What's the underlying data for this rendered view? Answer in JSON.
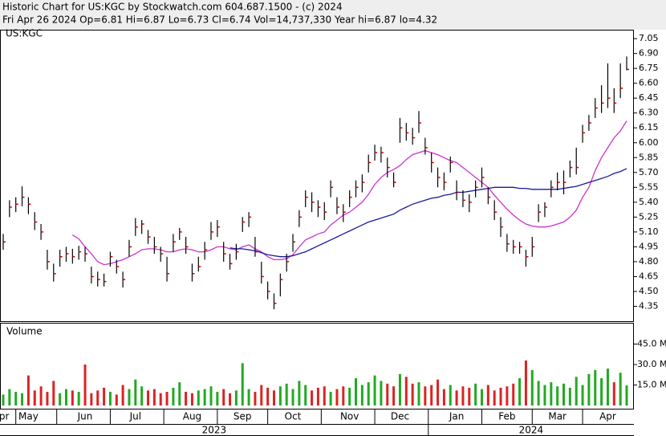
{
  "chart_data": {
    "type": "ohlc",
    "title": "Historic Chart for US:KGC by Stockwatch.com 604.687.1500 - (c) 2024",
    "subtitle": "Fri Apr 26 2024  Op=6.81  Hi=6.87  Lo=6.73  Cl=6.74  Vol=14,737,330  Year hi=6.87  lo=4.32",
    "symbol": "US:KGC",
    "categories": [
      "Apr",
      null,
      null,
      null,
      "May",
      null,
      null,
      null,
      null,
      null,
      null,
      null,
      null,
      "Jun",
      null,
      null,
      null,
      null,
      null,
      null,
      null,
      "Jul",
      null,
      null,
      null,
      null,
      null,
      null,
      null,
      null,
      "Aug",
      null,
      null,
      null,
      null,
      null,
      null,
      null,
      "Sep",
      null,
      null,
      null,
      null,
      null,
      null,
      null,
      "Oct",
      null,
      null,
      null,
      null,
      null,
      null,
      null,
      null,
      "Nov",
      null,
      null,
      null,
      null,
      null,
      null,
      null,
      "Dec",
      null,
      null,
      null,
      null,
      null,
      null,
      null,
      null,
      "Jan",
      null,
      null,
      null,
      null,
      null,
      null,
      null,
      "Feb",
      null,
      null,
      null,
      null,
      null,
      null,
      null,
      "Mar",
      null,
      null,
      null,
      null,
      null,
      null,
      null,
      "Apr",
      null,
      null,
      null
    ],
    "year_labels": [
      "2023",
      "2024"
    ],
    "highs": [
      5.08,
      5.42,
      5.45,
      5.56,
      5.45,
      5.3,
      5.18,
      4.92,
      4.78,
      4.92,
      4.95,
      4.93,
      4.96,
      4.95,
      4.75,
      4.7,
      4.68,
      4.9,
      4.82,
      4.7,
      5.02,
      5.24,
      5.22,
      5.12,
      5.05,
      4.95,
      4.85,
      5.08,
      5.14,
      5.05,
      4.78,
      4.85,
      5.0,
      5.2,
      5.22,
      5.0,
      4.88,
      4.98,
      5.25,
      5.3,
      5.05,
      4.8,
      4.6,
      4.48,
      4.68,
      4.88,
      5.08,
      5.32,
      5.52,
      5.5,
      5.42,
      5.4,
      5.62,
      5.45,
      5.38,
      5.52,
      5.62,
      5.68,
      5.88,
      5.98,
      5.96,
      5.85,
      5.7,
      6.25,
      6.2,
      6.15,
      6.32,
      6.05,
      5.9,
      5.75,
      5.7,
      5.86,
      5.62,
      5.52,
      5.48,
      5.62,
      5.75,
      5.55,
      5.42,
      5.25,
      5.08,
      5.02,
      5.0,
      4.92,
      5.05,
      5.38,
      5.4,
      5.62,
      5.7,
      5.72,
      5.82,
      5.95,
      6.18,
      6.28,
      6.45,
      6.58,
      6.8,
      6.55,
      6.8,
      6.87
    ],
    "lows": [
      4.92,
      5.25,
      5.3,
      5.36,
      5.28,
      5.12,
      5.02,
      4.72,
      4.6,
      4.75,
      4.8,
      4.78,
      4.82,
      4.8,
      4.58,
      4.55,
      4.55,
      4.75,
      4.68,
      4.54,
      4.85,
      5.06,
      5.08,
      4.98,
      4.88,
      4.8,
      4.6,
      4.9,
      5.02,
      4.88,
      4.6,
      4.7,
      4.82,
      5.02,
      5.05,
      4.8,
      4.72,
      4.82,
      5.1,
      5.15,
      4.85,
      4.58,
      4.42,
      4.32,
      4.45,
      4.7,
      4.9,
      5.15,
      5.35,
      5.3,
      5.25,
      5.22,
      5.45,
      5.28,
      5.2,
      5.35,
      5.45,
      5.5,
      5.7,
      5.82,
      5.8,
      5.65,
      5.55,
      6.0,
      6.02,
      5.98,
      6.1,
      5.88,
      5.7,
      5.55,
      5.52,
      5.7,
      5.42,
      5.35,
      5.3,
      5.45,
      5.55,
      5.38,
      5.22,
      5.05,
      4.9,
      4.88,
      4.88,
      4.75,
      4.85,
      5.2,
      5.25,
      5.45,
      5.52,
      5.48,
      5.65,
      5.68,
      6.0,
      6.12,
      6.25,
      6.3,
      6.35,
      6.3,
      6.45,
      6.73
    ],
    "closes": [
      5.0,
      5.35,
      5.38,
      5.45,
      5.38,
      5.2,
      5.1,
      4.8,
      4.68,
      4.85,
      4.88,
      4.85,
      4.9,
      4.88,
      4.65,
      4.62,
      4.6,
      4.85,
      4.75,
      4.62,
      4.95,
      5.15,
      5.18,
      5.05,
      4.95,
      4.88,
      4.68,
      5.0,
      5.1,
      4.95,
      4.68,
      4.75,
      4.92,
      5.1,
      5.15,
      4.88,
      4.78,
      4.9,
      5.2,
      5.25,
      4.9,
      4.65,
      4.5,
      4.38,
      4.62,
      4.8,
      5.0,
      5.25,
      5.45,
      5.4,
      5.35,
      5.3,
      5.55,
      5.35,
      5.3,
      5.45,
      5.55,
      5.6,
      5.8,
      5.9,
      5.9,
      5.75,
      5.6,
      6.15,
      6.1,
      6.05,
      6.2,
      5.95,
      5.8,
      5.65,
      5.6,
      5.8,
      5.5,
      5.42,
      5.4,
      5.55,
      5.65,
      5.45,
      5.3,
      5.15,
      4.98,
      4.95,
      4.95,
      4.85,
      4.95,
      5.3,
      5.35,
      5.55,
      5.6,
      5.6,
      5.75,
      5.75,
      6.1,
      6.2,
      6.35,
      6.4,
      6.45,
      6.4,
      6.55,
      6.74
    ],
    "bar_color": "#000000",
    "close_color": "#cc0000",
    "overlays": [
      {
        "color": "#cc33cc",
        "values": [
          null,
          null,
          null,
          null,
          null,
          null,
          null,
          null,
          null,
          null,
          null,
          5.07,
          5.03,
          4.95,
          4.88,
          4.8,
          4.77,
          4.78,
          4.8,
          4.82,
          4.85,
          4.88,
          4.92,
          4.93,
          4.93,
          4.92,
          4.9,
          4.9,
          4.92,
          4.93,
          4.92,
          4.9,
          4.9,
          4.92,
          4.95,
          4.95,
          4.93,
          4.92,
          4.95,
          4.97,
          4.93,
          4.9,
          4.85,
          4.82,
          4.82,
          4.83,
          4.87,
          4.95,
          5.02,
          5.05,
          5.08,
          5.1,
          5.17,
          5.22,
          5.27,
          5.3,
          5.35,
          5.4,
          5.48,
          5.58,
          5.65,
          5.7,
          5.73,
          5.77,
          5.83,
          5.88,
          5.9,
          5.92,
          5.9,
          5.88,
          5.85,
          5.82,
          5.8,
          5.75,
          5.7,
          5.65,
          5.6,
          5.55,
          5.47,
          5.4,
          5.33,
          5.27,
          5.22,
          5.18,
          5.16,
          5.15,
          5.15,
          5.16,
          5.18,
          5.2,
          5.25,
          5.32,
          5.45,
          5.55,
          5.72,
          5.85,
          5.95,
          6.05,
          6.12,
          6.22
        ]
      },
      {
        "color": "#1a1aa0",
        "values": [
          null,
          null,
          null,
          null,
          null,
          null,
          null,
          null,
          null,
          null,
          null,
          null,
          null,
          null,
          null,
          null,
          null,
          null,
          null,
          null,
          null,
          null,
          null,
          null,
          null,
          null,
          null,
          null,
          null,
          null,
          null,
          null,
          null,
          null,
          null,
          null,
          4.94,
          4.93,
          4.93,
          4.92,
          4.91,
          4.89,
          4.87,
          4.86,
          4.85,
          4.85,
          4.86,
          4.88,
          4.9,
          4.93,
          4.96,
          4.99,
          5.02,
          5.05,
          5.08,
          5.11,
          5.14,
          5.17,
          5.2,
          5.22,
          5.24,
          5.26,
          5.28,
          5.32,
          5.35,
          5.38,
          5.4,
          5.42,
          5.44,
          5.45,
          5.47,
          5.48,
          5.5,
          5.5,
          5.51,
          5.52,
          5.53,
          5.54,
          5.55,
          5.55,
          5.55,
          5.55,
          5.54,
          5.54,
          5.53,
          5.53,
          5.53,
          5.53,
          5.53,
          5.54,
          5.55,
          5.56,
          5.58,
          5.6,
          5.62,
          5.64,
          5.66,
          5.69,
          5.71,
          5.74
        ]
      }
    ],
    "ylim": [
      4.2,
      7.14
    ],
    "yticks": [
      4.35,
      {
        "value": 4.5,
        "label": "4.50"
      },
      4.65,
      {
        "value": 4.8,
        "label": "4.80"
      },
      4.95,
      {
        "value": 5.1,
        "label": "5.10"
      },
      5.25,
      {
        "value": 5.4,
        "label": "5.40"
      },
      5.55,
      {
        "value": 5.7,
        "label": "5.70"
      },
      5.85,
      {
        "value": 6.0,
        "label": "6.00"
      },
      6.15,
      {
        "value": 6.3,
        "label": "6.30"
      },
      6.45,
      {
        "value": 6.6,
        "label": "6.60"
      },
      6.75,
      {
        "value": 6.9,
        "label": "6.90"
      },
      7.05
    ],
    "volume": {
      "title": "Volume",
      "values": [
        8,
        12,
        10,
        9,
        22,
        11,
        14,
        10,
        18,
        9,
        12,
        11,
        10,
        30,
        9,
        11,
        13,
        10,
        8,
        15,
        12,
        19,
        14,
        11,
        12,
        9,
        10,
        13,
        17,
        10,
        9,
        11,
        12,
        14,
        10,
        12,
        9,
        11,
        31,
        12,
        10,
        15,
        13,
        11,
        14,
        16,
        12,
        18,
        15,
        11,
        13,
        14,
        10,
        12,
        14,
        13,
        20,
        15,
        17,
        22,
        18,
        16,
        14,
        23,
        21,
        16,
        17,
        14,
        15,
        19,
        12,
        15,
        11,
        14,
        13,
        16,
        12,
        15,
        11,
        13,
        14,
        16,
        20,
        33,
        26,
        18,
        15,
        17,
        14,
        16,
        13,
        21,
        15,
        23,
        26,
        20,
        27,
        17,
        24,
        14.7
      ],
      "up_color": "#22aa22",
      "down_color": "#dd2222",
      "ylim": [
        0,
        60
      ],
      "yticks": [
        {
          "value": 15,
          "label": "15.0 M"
        },
        {
          "value": 30,
          "label": "30.0 M"
        },
        {
          "value": 45,
          "label": "45.0 M"
        }
      ]
    }
  }
}
